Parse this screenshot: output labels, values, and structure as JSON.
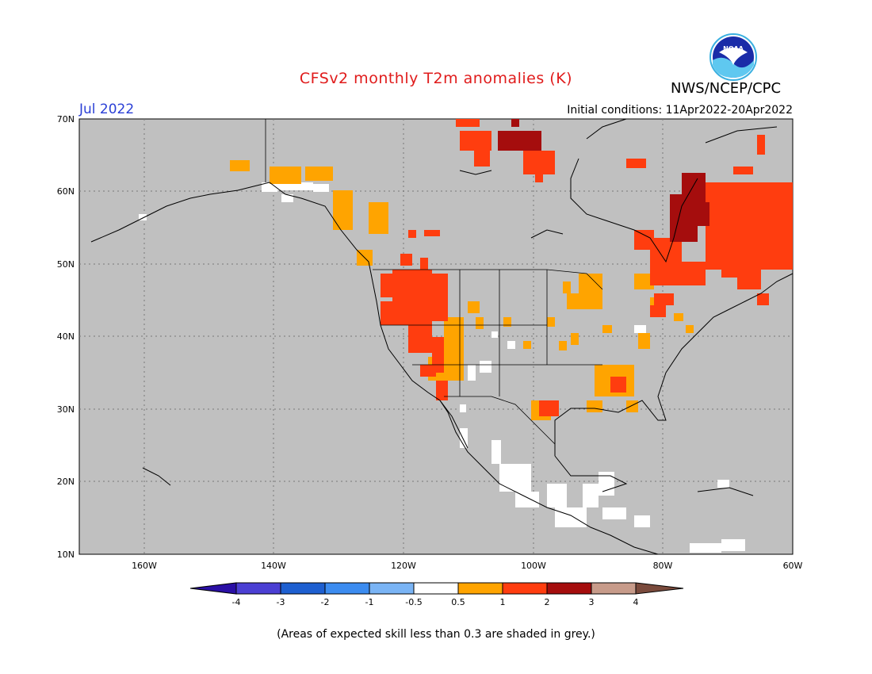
{
  "header": {
    "title": "CFSv2 monthly T2m anomalies (K)",
    "org": "NWS/NCEP/CPC",
    "period": "Jul 2022",
    "initial_conditions": "Initial conditions: 11Apr2022-20Apr2022",
    "logo_text": "NOAA"
  },
  "map": {
    "lat_labels": [
      "70N",
      "60N",
      "50N",
      "40N",
      "30N",
      "20N",
      "10N"
    ],
    "lon_labels": [
      "160W",
      "140W",
      "120W",
      "100W",
      "80W",
      "60W"
    ],
    "extent": {
      "lon_min": -170,
      "lon_max": -60,
      "lat_min": 10,
      "lat_max": 70
    },
    "background_color": "#c0c0c0"
  },
  "legend": {
    "tick_labels": [
      "-4",
      "-3",
      "-2",
      "-1",
      "-0.5",
      "0.5",
      "1",
      "2",
      "3",
      "4"
    ],
    "colors": [
      "#2a0fa5",
      "#4b3fd3",
      "#1e5fd0",
      "#3c8cf0",
      "#7ab4f5",
      "#ffffff",
      "#ffa400",
      "#ff3d0f",
      "#a50d0d",
      "#c79b8a",
      "#7a4a3c"
    ]
  },
  "footnote": "(Areas of expected skill less than 0.3 are shaded in grey.)"
}
